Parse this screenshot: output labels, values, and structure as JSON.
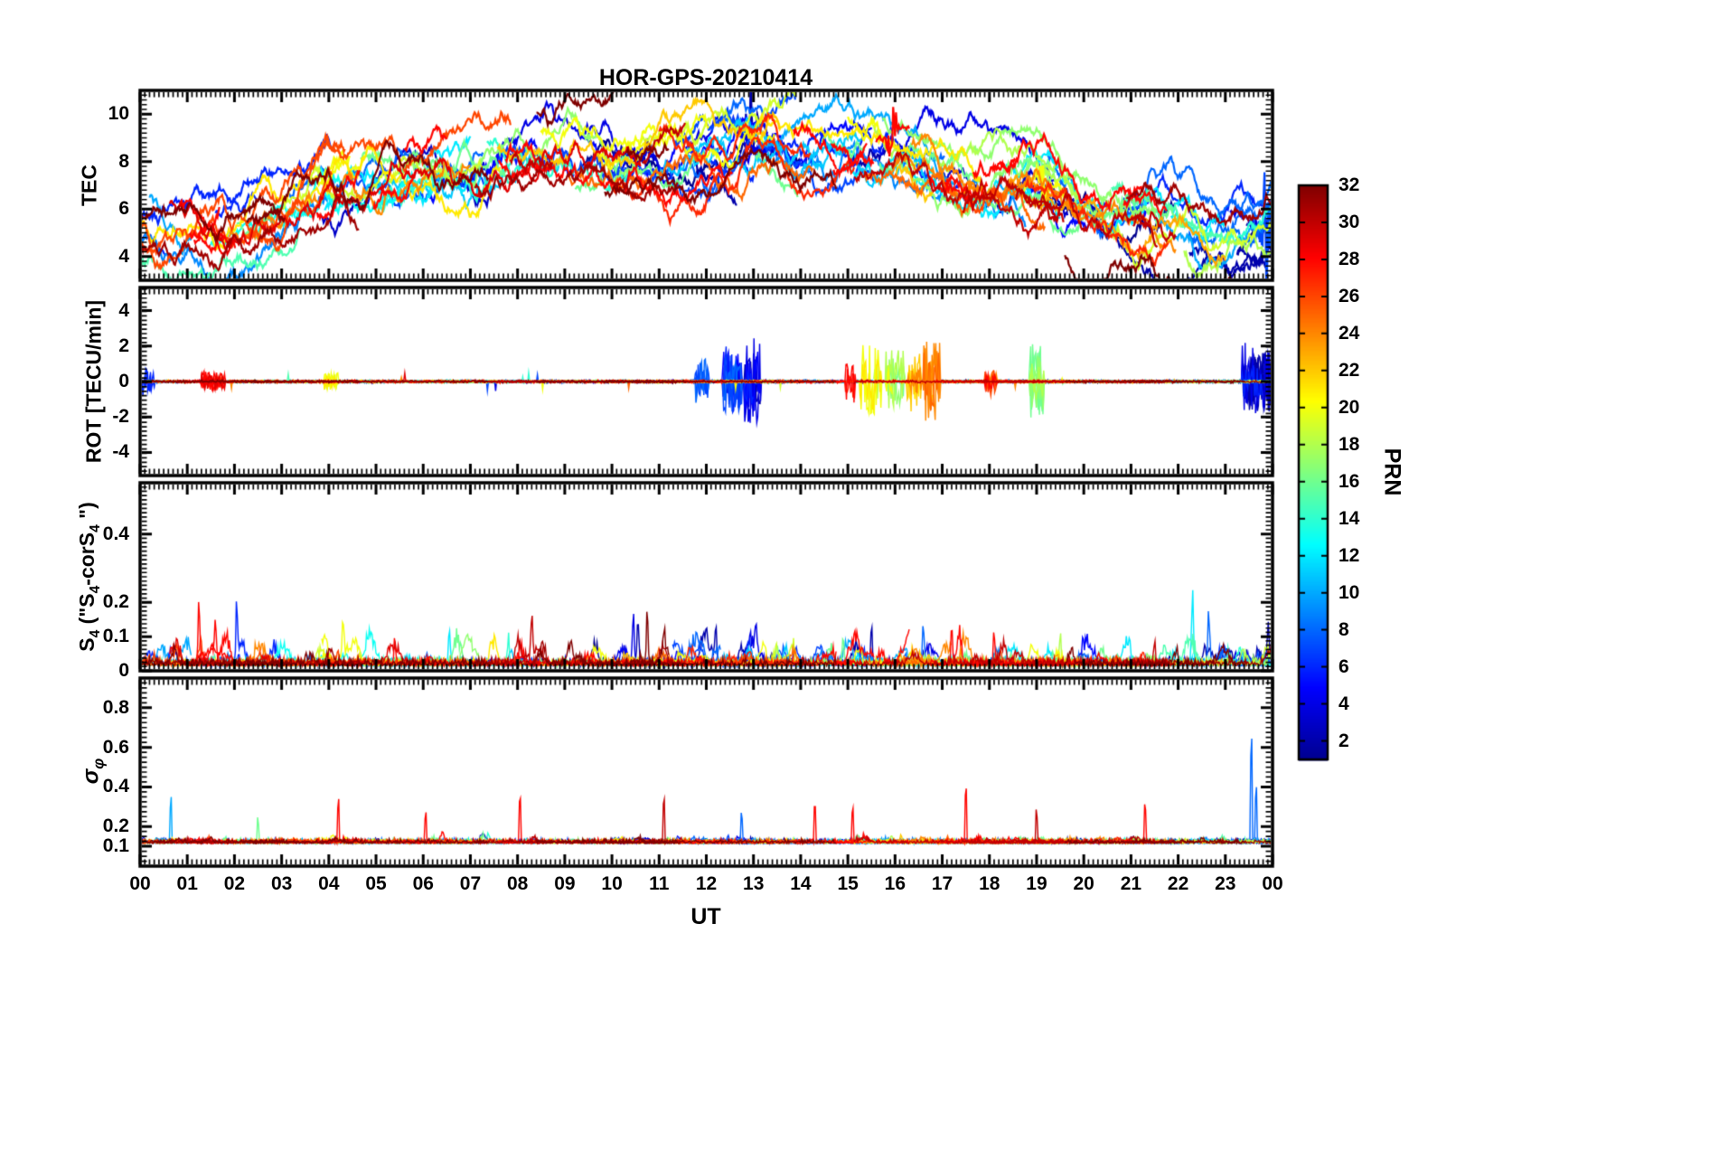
{
  "chart_data": {
    "type": "line",
    "title": "HOR-GPS-20210414",
    "xlabel": "UT",
    "seed": 20210414,
    "x_range": [
      0,
      24
    ],
    "x_tick_labels": [
      "00",
      "01",
      "02",
      "03",
      "04",
      "05",
      "06",
      "07",
      "08",
      "09",
      "10",
      "11",
      "12",
      "13",
      "14",
      "15",
      "16",
      "17",
      "18",
      "19",
      "20",
      "21",
      "22",
      "23",
      "00"
    ],
    "colorbar": {
      "label": "PRN",
      "min": 1,
      "max": 32,
      "tick_values": [
        2,
        4,
        6,
        8,
        10,
        12,
        14,
        16,
        18,
        20,
        22,
        24,
        26,
        28,
        30,
        32
      ],
      "colormap": "jet"
    },
    "panels": [
      {
        "name": "TEC",
        "ylabel": "TEC",
        "ylim": [
          3,
          11
        ],
        "ytick_values": [
          4,
          6,
          8,
          10
        ],
        "ytick_labels": [
          "4",
          "6",
          "8",
          "10"
        ],
        "minor_step": 0.2,
        "series_model": {
          "kind": "tec",
          "envelope_x": [
            0,
            1,
            2,
            3,
            4,
            5,
            6,
            7,
            8,
            9,
            10,
            11,
            12,
            13,
            14,
            15,
            16,
            17,
            18,
            19,
            20,
            21,
            22,
            23,
            24
          ],
          "envelope_y": [
            5.0,
            4.8,
            5.0,
            5.6,
            6.8,
            7.3,
            7.3,
            7.6,
            8.4,
            8.4,
            8.1,
            7.9,
            8.5,
            8.7,
            8.4,
            8.6,
            8.1,
            7.6,
            7.0,
            7.4,
            6.2,
            5.6,
            5.2,
            4.9,
            5.2
          ],
          "prn_spread": 2.2,
          "extra_passes": [
            {
              "prn": 32,
              "t0": 19.6,
              "t1": 23.4,
              "offset": -2.6
            },
            {
              "prn": 32,
              "t0": 8.4,
              "t1": 10.2,
              "offset": 1.9
            },
            {
              "prn": 7,
              "t0": 23.55,
              "t1": 24,
              "feature": {
                "t": 23.85,
                "amp": 2.8,
                "w": 0.18
              }
            },
            {
              "prn": 2,
              "t0": 12.6,
              "t1": 13.3,
              "feature": {
                "t": 12.95,
                "amp": 2.2,
                "w": 0.12
              }
            },
            {
              "prn": 28,
              "t0": 15.6,
              "t1": 16.3,
              "feature": {
                "t": 15.95,
                "amp": 1.6,
                "w": 0.1
              }
            },
            {
              "prn": 20,
              "t0": 18.7,
              "t1": 19.6,
              "feature": {
                "t": 19.15,
                "amp": 1.5,
                "w": 0.1
              }
            }
          ]
        }
      },
      {
        "name": "ROT",
        "ylabel": "ROT [TECU/min]",
        "ylim": [
          -5.3,
          5.3
        ],
        "ytick_values": [
          -4,
          -2,
          0,
          2,
          4
        ],
        "ytick_labels": [
          "-4",
          "-2",
          "0",
          "2",
          "4"
        ],
        "minor_step": 0.25,
        "series_model": {
          "kind": "rot",
          "baseline_noise": 0.07,
          "bursts": [
            {
              "start": 0.05,
              "end": 0.3,
              "amp": 0.8,
              "prn": 6
            },
            {
              "start": 1.3,
              "end": 1.8,
              "amp": 0.55,
              "prn": 28
            },
            {
              "start": 3.9,
              "end": 4.2,
              "amp": 0.5,
              "prn": 20
            },
            {
              "start": 11.75,
              "end": 12.05,
              "amp": 1.3,
              "prn": 8
            },
            {
              "start": 12.35,
              "end": 12.75,
              "amp": 2.3,
              "prn": 6
            },
            {
              "start": 12.8,
              "end": 13.15,
              "amp": 2.5,
              "prn": 4
            },
            {
              "start": 14.95,
              "end": 15.15,
              "amp": 1.2,
              "prn": 28
            },
            {
              "start": 15.25,
              "end": 15.7,
              "amp": 2.1,
              "prn": 20
            },
            {
              "start": 15.8,
              "end": 16.2,
              "amp": 1.8,
              "prn": 18
            },
            {
              "start": 16.25,
              "end": 16.55,
              "amp": 1.7,
              "prn": 22
            },
            {
              "start": 16.6,
              "end": 16.95,
              "amp": 2.3,
              "prn": 24
            },
            {
              "start": 17.9,
              "end": 18.15,
              "amp": 0.8,
              "prn": 26
            },
            {
              "start": 18.85,
              "end": 19.15,
              "amp": 2.1,
              "prn": 16
            },
            {
              "start": 23.35,
              "end": 23.95,
              "amp": 2.3,
              "prn": 4
            },
            {
              "start": 23.5,
              "end": 24.0,
              "amp": 1.7,
              "prn": 2
            }
          ]
        }
      },
      {
        "name": "S4",
        "ylabel_parts": {
          "p1": "S",
          "p2": "4",
          "p3": " (\"S",
          "p4": "4",
          "p5": "-corS",
          "p6": "4",
          "p7": " \")"
        },
        "ylim": [
          0,
          0.55
        ],
        "ytick_values": [
          0,
          0.1,
          0.2,
          0.4
        ],
        "ytick_labels": [
          "0",
          "0.1",
          "0.2",
          "0.4"
        ],
        "minor_step": 0.0125,
        "series_model": {
          "kind": "s4",
          "baseline": 0.015,
          "noise": 0.018,
          "events": [
            {
              "t": 1.25,
              "prn": 28,
              "amp": 0.26
            },
            {
              "t": 1.6,
              "prn": 28,
              "amp": 0.17
            },
            {
              "t": 2.05,
              "prn": 6,
              "amp": 0.23
            },
            {
              "t": 4.3,
              "prn": 20,
              "amp": 0.1
            },
            {
              "t": 5.4,
              "prn": 28,
              "amp": 0.12
            },
            {
              "t": 6.55,
              "prn": 12,
              "amp": 0.15
            },
            {
              "t": 7.8,
              "prn": 14,
              "amp": 0.12
            },
            {
              "t": 8.3,
              "prn": 30,
              "amp": 0.14
            },
            {
              "t": 10.45,
              "prn": 4,
              "amp": 0.22
            },
            {
              "t": 10.55,
              "prn": 2,
              "amp": 0.26
            },
            {
              "t": 10.75,
              "prn": 32,
              "amp": 0.22
            },
            {
              "t": 12.2,
              "prn": 2,
              "amp": 0.12
            },
            {
              "t": 13.05,
              "prn": 4,
              "amp": 0.12
            },
            {
              "t": 13.5,
              "prn": 16,
              "amp": 0.12
            },
            {
              "t": 14.9,
              "prn": 16,
              "amp": 0.13
            },
            {
              "t": 15.5,
              "prn": 2,
              "amp": 0.14
            },
            {
              "t": 16.6,
              "prn": 8,
              "amp": 0.12
            },
            {
              "t": 17.2,
              "prn": 28,
              "amp": 0.14
            },
            {
              "t": 18.1,
              "prn": 28,
              "amp": 0.13
            },
            {
              "t": 19.5,
              "prn": 18,
              "amp": 0.13
            },
            {
              "t": 21.5,
              "prn": 30,
              "amp": 0.12
            },
            {
              "t": 22.3,
              "prn": 12,
              "amp": 0.3
            },
            {
              "t": 22.65,
              "prn": 8,
              "amp": 0.23
            },
            {
              "t": 23.9,
              "prn": 2,
              "amp": 0.12
            }
          ]
        }
      },
      {
        "name": "sigma_phi",
        "ylabel_parts": {
          "p1": "σ",
          "p2": "φ"
        },
        "ylim": [
          0,
          0.95
        ],
        "ytick_values": [
          0.1,
          0.2,
          0.4,
          0.6,
          0.8
        ],
        "ytick_labels": [
          "0.1",
          "0.2",
          "0.4",
          "0.6",
          "0.8"
        ],
        "minor_step": 0.025,
        "series_model": {
          "kind": "sigma",
          "baseline": 0.115,
          "noise": 0.018,
          "events": [
            {
              "t": 0.65,
              "prn": 10,
              "amp": 0.37
            },
            {
              "t": 2.5,
              "prn": 16,
              "amp": 0.18
            },
            {
              "t": 4.2,
              "prn": 28,
              "amp": 0.36
            },
            {
              "t": 6.05,
              "prn": 28,
              "amp": 0.28
            },
            {
              "t": 8.05,
              "prn": 28,
              "amp": 0.4
            },
            {
              "t": 11.1,
              "prn": 30,
              "amp": 0.38
            },
            {
              "t": 12.75,
              "prn": 8,
              "amp": 0.22
            },
            {
              "t": 14.3,
              "prn": 28,
              "amp": 0.42
            },
            {
              "t": 15.1,
              "prn": 28,
              "amp": 0.28
            },
            {
              "t": 17.5,
              "prn": 28,
              "amp": 0.4
            },
            {
              "t": 19.0,
              "prn": 30,
              "amp": 0.26
            },
            {
              "t": 21.3,
              "prn": 28,
              "amp": 0.38
            },
            {
              "t": 23.55,
              "prn": 8,
              "amp": 0.8
            },
            {
              "t": 23.65,
              "prn": 8,
              "amp": 0.45
            }
          ]
        }
      }
    ]
  }
}
